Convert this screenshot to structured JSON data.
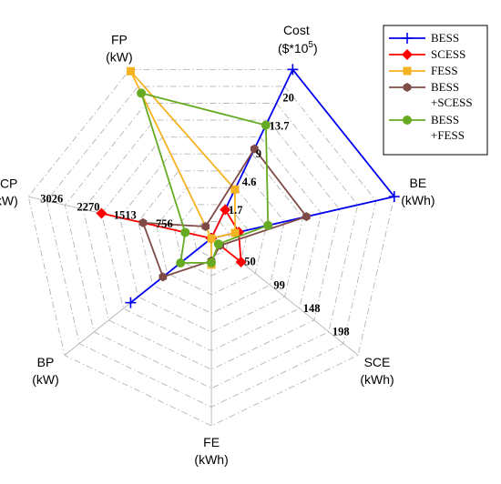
{
  "chart_data": {
    "type": "radar",
    "axes": [
      {
        "name": "Cost",
        "label_lines": [
          "Cost",
          "($*10",
          "5",
          ")"
        ],
        "max": 20,
        "ticks": [
          "1.7",
          "4.6",
          "9",
          "13.7",
          "20"
        ]
      },
      {
        "name": "BE",
        "label_lines": [
          "BE",
          "(kWh)"
        ],
        "max": 100,
        "ticks": []
      },
      {
        "name": "SCE",
        "label_lines": [
          "SCE",
          "(kWh)"
        ],
        "max": 247,
        "ticks": [
          "50",
          "99",
          "148",
          "198"
        ]
      },
      {
        "name": "FE",
        "label_lines": [
          "FE",
          "(kWh)"
        ],
        "max": 100,
        "ticks": []
      },
      {
        "name": "BP",
        "label_lines": [
          "BP",
          "(kW)"
        ],
        "max": 100,
        "ticks": []
      },
      {
        "name": "SCP",
        "label_lines": [
          "SCP",
          "(kW)"
        ],
        "max": 3783,
        "ticks": [
          "756",
          "1513",
          "2270",
          "3026"
        ]
      },
      {
        "name": "FP",
        "label_lines": [
          "FP",
          "(kW)"
        ],
        "max": 100,
        "ticks": []
      }
    ],
    "grid_levels": 10,
    "series": [
      {
        "name": "BESS",
        "legend_lines": [
          "BESS"
        ],
        "color": "#0000ee",
        "marker": "plus",
        "values": [
          20,
          100,
          0,
          0,
          55,
          0,
          0
        ]
      },
      {
        "name": "SCESS",
        "legend_lines": [
          "SCESS"
        ],
        "color": "#ff0000",
        "marker": "diamond",
        "values": [
          3.4,
          15,
          50,
          0,
          0,
          2270,
          0
        ]
      },
      {
        "name": "FESS",
        "legend_lines": [
          "FESS"
        ],
        "color": "#f5b323",
        "marker": "square",
        "values": [
          5.8,
          13,
          0,
          14,
          0,
          0,
          99
        ]
      },
      {
        "name": "BESS+SCESS",
        "legend_lines": [
          "BESS",
          "+SCESS"
        ],
        "color": "#7f4b47",
        "marker": "hexagon",
        "values": [
          10.6,
          52,
          15,
          12,
          33,
          1412,
          7
        ]
      },
      {
        "name": "BESS+FESS",
        "legend_lines": [
          "BESS",
          "+FESS"
        ],
        "color": "#66aa22",
        "marker": "circle",
        "values": [
          13.4,
          31,
          12,
          13,
          21,
          540,
          86
        ]
      }
    ],
    "legend": "top-right"
  }
}
